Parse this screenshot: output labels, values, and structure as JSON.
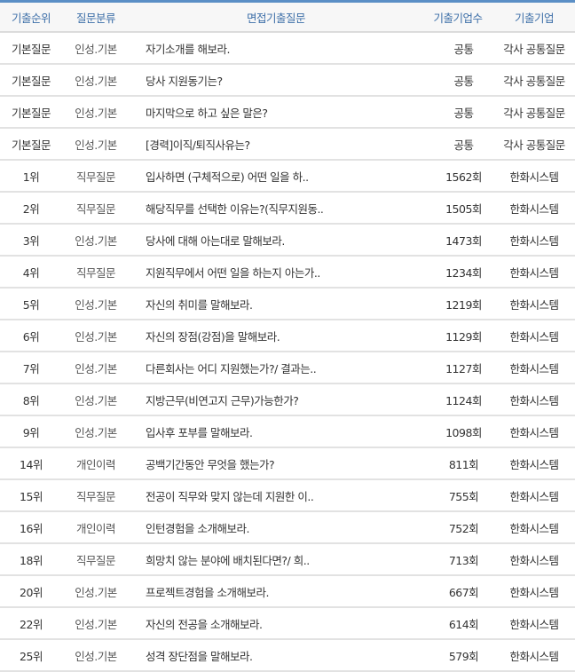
{
  "headers": [
    "기출순위",
    "질문분류",
    "면접기출질문",
    "기출기업수",
    "기출기업"
  ],
  "rows": [
    [
      "기본질문",
      "인성.기본",
      "자기소개를 해보라.",
      "공통",
      "각사 공통질문"
    ],
    [
      "기본질문",
      "인성.기본",
      "당사 지원동기는?",
      "공통",
      "각사 공통질문"
    ],
    [
      "기본질문",
      "인성.기본",
      "마지막으로 하고 싶은 말은?",
      "공통",
      "각사 공통질문"
    ],
    [
      "기본질문",
      "인성.기본",
      "[경력]이직/퇴직사유는?",
      "공통",
      "각사 공통질문"
    ],
    [
      "1위",
      "직무질문",
      "입사하면 (구체적으로) 어떤 일을 하..",
      "1562회",
      "한화시스템"
    ],
    [
      "2위",
      "직무질문",
      "해당직무를 선택한 이유는?(직무지원동..",
      "1505회",
      "한화시스템"
    ],
    [
      "3위",
      "인성.기본",
      "당사에 대해 아는대로 말해보라.",
      "1473회",
      "한화시스템"
    ],
    [
      "4위",
      "직무질문",
      "지원직무에서 어떤 일을 하는지 아는가..",
      "1234회",
      "한화시스템"
    ],
    [
      "5위",
      "인성.기본",
      "자신의 취미를 말해보라.",
      "1219회",
      "한화시스템"
    ],
    [
      "6위",
      "인성.기본",
      "자신의 장점(강점)을 말해보라.",
      "1129회",
      "한화시스템"
    ],
    [
      "7위",
      "인성.기본",
      "다른회사는 어디 지원했는가?/ 결과는..",
      "1127회",
      "한화시스템"
    ],
    [
      "8위",
      "인성.기본",
      "지방근무(비연고지 근무)가능한가?",
      "1124회",
      "한화시스템"
    ],
    [
      "9위",
      "인성.기본",
      "입사후 포부를 말해보라.",
      "1098회",
      "한화시스템"
    ],
    [
      "14위",
      "개인이력",
      "공백기간동안 무엇을 했는가?",
      "811회",
      "한화시스템"
    ],
    [
      "15위",
      "직무질문",
      "전공이 직무와 맞지 않는데 지원한 이..",
      "755회",
      "한화시스템"
    ],
    [
      "16위",
      "개인이력",
      "인턴경험을 소개해보라.",
      "752회",
      "한화시스템"
    ],
    [
      "18위",
      "직무질문",
      "희망치 않는 분야에 배치된다면?/ 희..",
      "713회",
      "한화시스템"
    ],
    [
      "20위",
      "인성.기본",
      "프로젝트경험을 소개해보라.",
      "667회",
      "한화시스템"
    ],
    [
      "22위",
      "인성.기본",
      "자신의 전공을 소개해보라.",
      "614회",
      "한화시스템"
    ],
    [
      "25위",
      "인성.기본",
      "성격 장단점을 말해보라.",
      "579회",
      "한화시스템"
    ]
  ]
}
